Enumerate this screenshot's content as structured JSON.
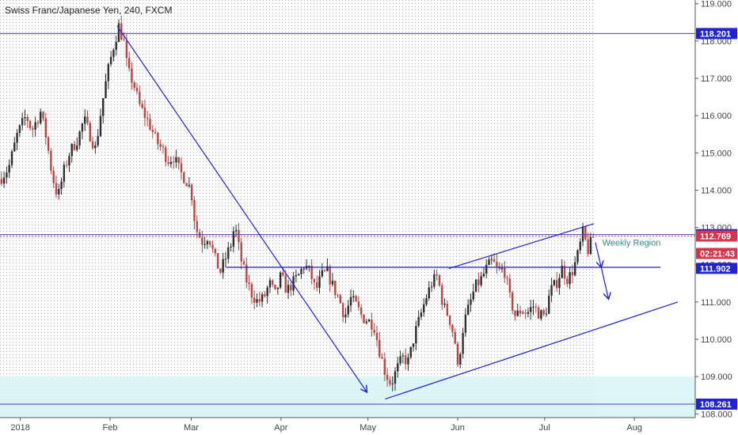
{
  "header": {
    "title": "Swiss Franc/Japanese Yen, 240, FXCM"
  },
  "colors": {
    "bull": "#2e2e2e",
    "bear": "#b44848",
    "drawing_blue": "#1f22d6",
    "level_purple": "#4b3fb8",
    "zone_fill": "#d6f5f7",
    "tag_blue": "#1f22d6",
    "tag_red": "#d9344a",
    "grid": "#9a9a9a"
  },
  "chart_data": {
    "type": "candlestick",
    "title": "Swiss Franc/Japanese Yen, 240, FXCM",
    "timeframe": "240",
    "ylim": [
      107.9,
      119.1
    ],
    "y_ticks": [
      "119.000",
      "118.000",
      "117.000",
      "116.000",
      "115.000",
      "114.000",
      "113.000",
      "112.000",
      "111.000",
      "110.000",
      "109.000",
      "108.000"
    ],
    "x_ticks": [
      {
        "label": "2018",
        "day": 1
      },
      {
        "label": "Feb",
        "day": 32
      },
      {
        "label": "Mar",
        "day": 60
      },
      {
        "label": "Apr",
        "day": 91
      },
      {
        "label": "May",
        "day": 121
      },
      {
        "label": "Jun",
        "day": 152
      },
      {
        "label": "Jul",
        "day": 182
      },
      {
        "label": "Aug",
        "day": 213
      }
    ],
    "xlim_days": [
      -6,
      234
    ],
    "last_bar_day": 199,
    "price_path": [
      [
        -6,
        114.3
      ],
      [
        -3,
        114.6
      ],
      [
        0,
        115.5
      ],
      [
        3,
        116.0
      ],
      [
        5,
        115.6
      ],
      [
        8,
        116.1
      ],
      [
        10,
        115.4
      ],
      [
        12,
        114.4
      ],
      [
        14,
        113.8
      ],
      [
        16,
        114.5
      ],
      [
        18,
        115.0
      ],
      [
        21,
        115.4
      ],
      [
        23,
        115.9
      ],
      [
        25,
        115.5
      ],
      [
        27,
        115.1
      ],
      [
        29,
        116.2
      ],
      [
        31,
        117.1
      ],
      [
        33,
        117.8
      ],
      [
        35,
        118.4
      ],
      [
        37,
        117.9
      ],
      [
        38,
        117.2
      ],
      [
        40,
        116.9
      ],
      [
        42,
        116.3
      ],
      [
        44,
        116.0
      ],
      [
        46,
        115.7
      ],
      [
        48,
        115.3
      ],
      [
        50,
        115.1
      ],
      [
        52,
        114.8
      ],
      [
        54,
        114.9
      ],
      [
        56,
        114.5
      ],
      [
        58,
        114.3
      ],
      [
        60,
        114.0
      ],
      [
        61,
        113.3
      ],
      [
        62,
        112.9
      ],
      [
        64,
        112.6
      ],
      [
        66,
        112.8
      ],
      [
        68,
        112.2
      ],
      [
        70,
        111.8
      ],
      [
        72,
        112.2
      ],
      [
        74,
        112.6
      ],
      [
        75,
        113.1
      ],
      [
        77,
        112.2
      ],
      [
        79,
        111.6
      ],
      [
        81,
        111.2
      ],
      [
        83,
        111.0
      ],
      [
        85,
        111.1
      ],
      [
        87,
        111.5
      ],
      [
        89,
        111.2
      ],
      [
        91,
        111.7
      ],
      [
        93,
        111.3
      ],
      [
        95,
        111.5
      ],
      [
        97,
        111.7
      ],
      [
        99,
        112.0
      ],
      [
        101,
        111.8
      ],
      [
        103,
        111.3
      ],
      [
        105,
        111.7
      ],
      [
        107,
        111.8
      ],
      [
        109,
        111.4
      ],
      [
        111,
        111.1
      ],
      [
        113,
        110.6
      ],
      [
        115,
        111.1
      ],
      [
        117,
        110.9
      ],
      [
        119,
        110.6
      ],
      [
        121,
        110.5
      ],
      [
        123,
        110.4
      ],
      [
        125,
        109.7
      ],
      [
        127,
        109.1
      ],
      [
        129,
        108.8
      ],
      [
        131,
        109.2
      ],
      [
        133,
        109.5
      ],
      [
        135,
        109.4
      ],
      [
        137,
        110.1
      ],
      [
        139,
        110.6
      ],
      [
        141,
        111.1
      ],
      [
        143,
        111.5
      ],
      [
        145,
        111.7
      ],
      [
        147,
        110.9
      ],
      [
        149,
        110.6
      ],
      [
        151,
        110.0
      ],
      [
        152,
        109.2
      ],
      [
        154,
        110.4
      ],
      [
        156,
        110.9
      ],
      [
        158,
        111.4
      ],
      [
        160,
        111.6
      ],
      [
        162,
        111.9
      ],
      [
        164,
        112.1
      ],
      [
        166,
        111.8
      ],
      [
        168,
        111.9
      ],
      [
        170,
        111.1
      ],
      [
        172,
        110.6
      ],
      [
        174,
        110.8
      ],
      [
        176,
        110.7
      ],
      [
        178,
        110.9
      ],
      [
        180,
        110.7
      ],
      [
        182,
        110.6
      ],
      [
        184,
        111.3
      ],
      [
        186,
        111.5
      ],
      [
        188,
        111.9
      ],
      [
        190,
        111.6
      ],
      [
        192,
        111.9
      ],
      [
        194,
        112.4
      ],
      [
        195,
        112.9
      ],
      [
        197,
        112.4
      ],
      [
        199,
        112.77
      ]
    ],
    "levels": [
      {
        "price": 118.201,
        "label": "118.201"
      },
      {
        "price": 112.807,
        "label": "112.807"
      },
      {
        "price": 111.902,
        "label": "111.902"
      },
      {
        "price": 108.261,
        "label": "108.261"
      }
    ],
    "current": {
      "price": 112.769,
      "label": "112.769",
      "countdown": "02:21:43"
    },
    "zone": {
      "from": 107.9,
      "to": 109.0
    },
    "trendlines": [
      {
        "from": [
          34.5,
          118.4
        ],
        "to": [
          120.5,
          108.6
        ],
        "arrow": true
      },
      {
        "from": [
          127,
          108.4
        ],
        "to": [
          228,
          111.0
        ],
        "arrow": false
      },
      {
        "from": [
          149,
          111.9
        ],
        "to": [
          199,
          113.1
        ],
        "arrow": false
      },
      {
        "from": [
          72,
          111.93
        ],
        "to": [
          222,
          111.93
        ],
        "arrow": false
      }
    ],
    "small_arrows": [
      {
        "from": [
          199.5,
          112.6
        ],
        "to": [
          201.5,
          111.95
        ]
      },
      {
        "from": [
          201.5,
          111.95
        ],
        "to": [
          204,
          111.1
        ]
      }
    ],
    "annotations": [
      {
        "text": "Weekly Region",
        "day": 212,
        "price": 112.6
      }
    ]
  }
}
